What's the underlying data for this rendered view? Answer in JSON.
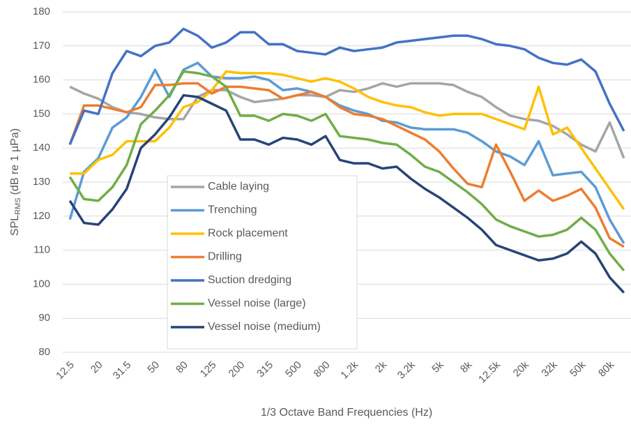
{
  "chart_data": {
    "type": "line",
    "x_label": "1/3 Octave Band Frequencies (Hz)",
    "y_label": [
      "SPL",
      "RMS",
      "(dB re 1 µPa)"
    ],
    "categories": [
      "12.5",
      null,
      "20",
      null,
      "31.5",
      null,
      "50",
      null,
      "80",
      null,
      "125",
      null,
      "200",
      null,
      "315",
      null,
      "500",
      null,
      "800",
      null,
      "1.2k",
      null,
      "2k",
      null,
      "3.2k",
      null,
      "5k",
      null,
      "8k",
      null,
      "12.5k",
      null,
      "20k",
      null,
      "32k",
      null,
      "50k",
      null,
      "80k",
      null
    ],
    "ylim": [
      80,
      180
    ],
    "yticks": [
      80,
      90,
      100,
      110,
      120,
      130,
      140,
      150,
      160,
      170,
      180
    ],
    "grid": true,
    "series": [
      {
        "name": "Cable laying",
        "color": "#a5a5a5",
        "values": [
          158,
          156,
          154.5,
          152,
          150.5,
          150,
          149,
          148.5,
          148.5,
          155,
          157,
          157,
          155,
          153.5,
          154,
          154.5,
          155.5,
          155.5,
          155,
          157,
          156.5,
          157.5,
          159,
          158,
          159,
          159,
          159,
          158.5,
          156.5,
          155,
          152,
          149.5,
          148.5,
          148,
          146.5,
          144,
          141,
          139,
          147.5,
          137
        ]
      },
      {
        "name": "Trenching",
        "color": "#5b9bd5",
        "values": [
          119,
          133,
          137,
          146,
          149,
          155,
          163,
          155,
          163,
          165,
          161,
          160.5,
          160.5,
          161,
          160,
          157,
          157.5,
          156.5,
          155,
          152.5,
          151,
          150,
          148,
          147.5,
          146,
          145.5,
          145.5,
          145.5,
          144.5,
          142,
          139,
          137.5,
          135,
          142,
          132,
          132.5,
          133,
          128.5,
          119,
          112
        ]
      },
      {
        "name": "Rock placement",
        "color": "#ffc000",
        "values": [
          132.5,
          132.5,
          136.5,
          138,
          142,
          142,
          142,
          146,
          152,
          153.5,
          157,
          162.5,
          162,
          162,
          162,
          161.5,
          160.5,
          159.5,
          160.5,
          159.5,
          157.5,
          155,
          153.5,
          152.5,
          152,
          150.5,
          149.5,
          150,
          150,
          150,
          148.5,
          147,
          145.5,
          158,
          144,
          146,
          140,
          134,
          128,
          122
        ]
      },
      {
        "name": "Drilling",
        "color": "#ed7d31",
        "values": [
          141,
          152.5,
          152.5,
          151.5,
          150.5,
          152,
          158.5,
          158.5,
          159,
          159,
          156,
          158,
          158,
          157.5,
          157,
          154.5,
          155.5,
          156.5,
          155,
          152,
          150,
          149.5,
          148.5,
          146.5,
          144.5,
          142.5,
          139,
          134,
          129.5,
          128.5,
          141,
          133,
          124.5,
          127.5,
          124.5,
          126,
          128,
          122.5,
          113.5,
          111
        ]
      },
      {
        "name": "Suction dredging",
        "color": "#4472c4",
        "values": [
          141,
          151,
          150,
          162,
          168.5,
          167,
          170,
          171,
          175,
          173,
          169.5,
          171,
          174,
          174,
          170.5,
          170.5,
          168.5,
          168,
          167.5,
          169.5,
          168.5,
          169,
          169.5,
          171,
          171.5,
          172,
          172.5,
          173,
          173,
          172,
          170.5,
          170,
          169,
          166.5,
          165,
          164.5,
          166,
          162.5,
          153,
          145
        ]
      },
      {
        "name": "Vessel noise (large)",
        "color": "#70ad47",
        "values": [
          131.5,
          125,
          124.5,
          128.5,
          135,
          147,
          151,
          155.5,
          162.5,
          162,
          161,
          158,
          149.5,
          149.5,
          148,
          150,
          149.5,
          148,
          150,
          143.5,
          143,
          142.5,
          141.5,
          141,
          138,
          134.5,
          133,
          130,
          127,
          123.5,
          119,
          117,
          115.5,
          114,
          114.5,
          116,
          119.5,
          116,
          109,
          104
        ]
      },
      {
        "name": "Vessel noise (medium)",
        "color": "#264478",
        "values": [
          124.5,
          118,
          117.5,
          122,
          128,
          140,
          144,
          149,
          155.5,
          155,
          153,
          151,
          142.5,
          142.5,
          141,
          143,
          142.5,
          141,
          143.5,
          136.5,
          135.5,
          135.5,
          134,
          134.5,
          131,
          128,
          125.5,
          122.5,
          119.5,
          116,
          111.5,
          110,
          108.5,
          107,
          107.5,
          109,
          112.5,
          109,
          102,
          97.5
        ]
      }
    ]
  }
}
